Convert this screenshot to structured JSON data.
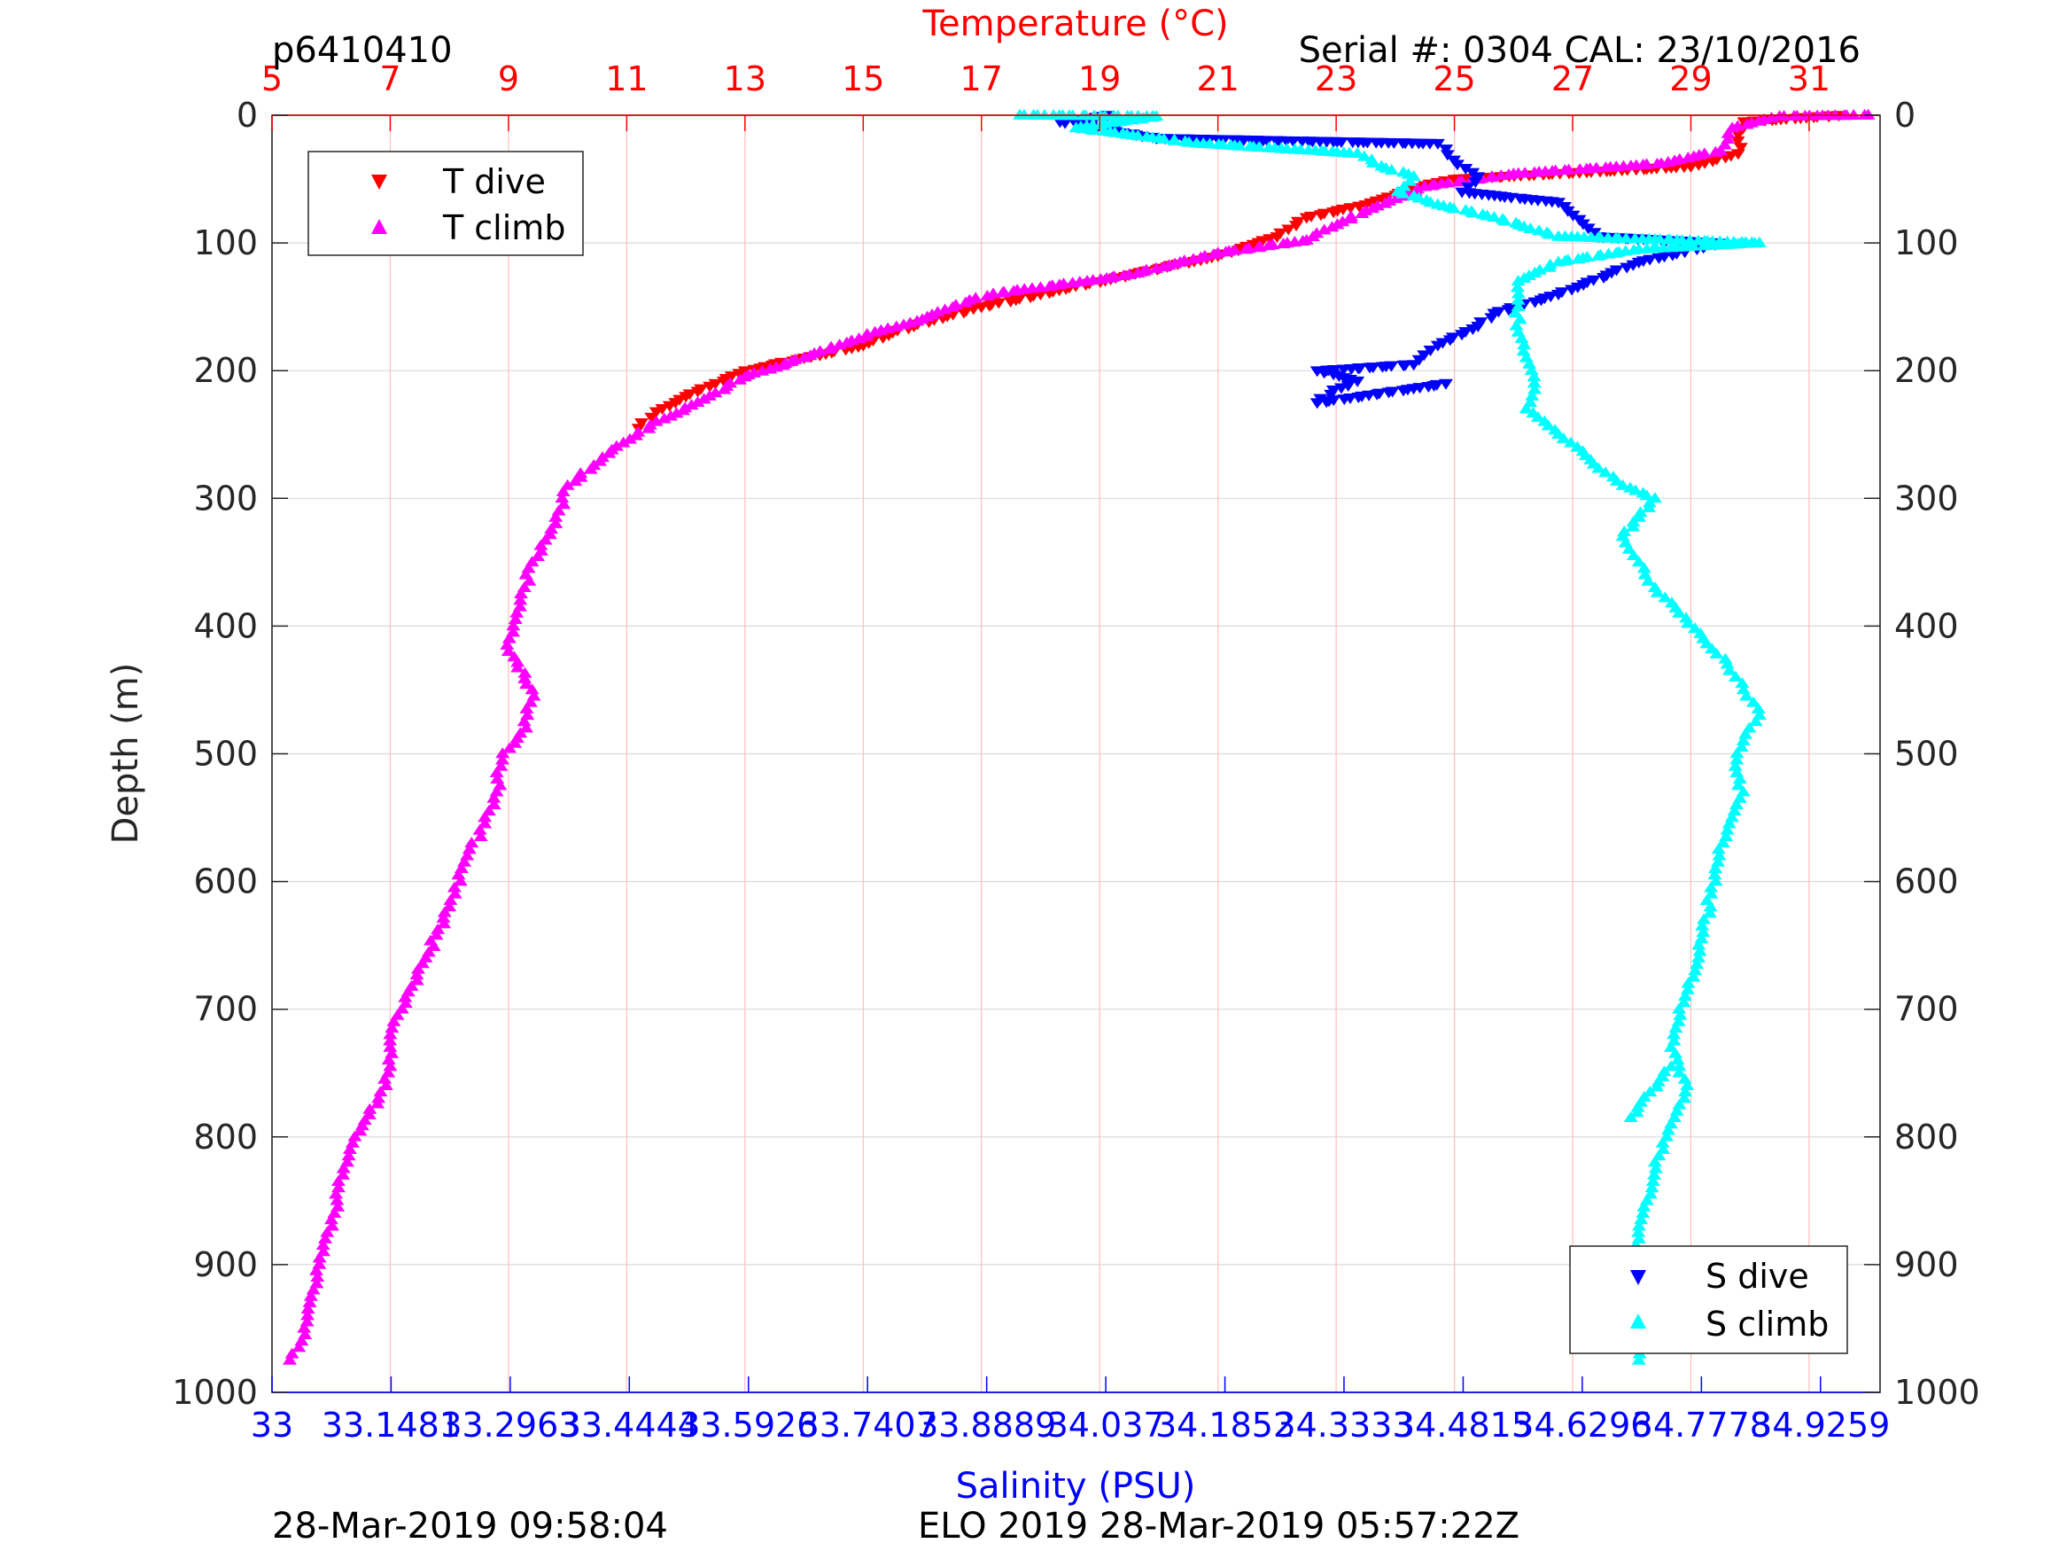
{
  "header": {
    "profile_id": "p6410410",
    "serial": "Serial #: 0304  CAL: 23/10/2016"
  },
  "footer": {
    "left": "28-Mar-2019 09:58:04",
    "center": "ELO 2019 28-Mar-2019 05:57:22Z"
  },
  "chart_data": {
    "type": "scatter",
    "title": "",
    "ylabel": "Depth (m)",
    "ylim": [
      0,
      1000
    ],
    "yreverse": true,
    "yticks": [
      "0",
      "100",
      "200",
      "300",
      "400",
      "500",
      "600",
      "700",
      "800",
      "900",
      "1000"
    ],
    "temperature_axis": {
      "label": "Temperature (°C)",
      "position": "top",
      "xlim": [
        5,
        32.2
      ],
      "ticks": [
        5,
        7,
        9,
        11,
        13,
        15,
        17,
        19,
        21,
        23,
        25,
        27,
        29,
        31
      ],
      "tick_labels": [
        "5",
        "7",
        "9",
        "11",
        "13",
        "15",
        "17",
        "19",
        "21",
        "23",
        "25",
        "27",
        "29",
        "31"
      ],
      "color": "#ff0000"
    },
    "salinity_axis": {
      "label": "Salinity (PSU)",
      "position": "bottom",
      "xlim": [
        33,
        35.0
      ],
      "ticks": [
        33,
        33.1481,
        33.2963,
        33.4444,
        33.5926,
        33.7407,
        33.8889,
        34.037,
        34.1852,
        34.3333,
        34.4815,
        34.6296,
        34.7778,
        34.9259
      ],
      "tick_labels": [
        "33",
        "33.1481",
        "33.2963",
        "33.4444",
        "33.5926",
        "33.7407",
        "33.8889",
        "34.037",
        "34.1852",
        "34.3333",
        "34.4815",
        "34.6296",
        "34.7778",
        "34.9259"
      ],
      "color": "#0000ff"
    },
    "grid": true,
    "legends": [
      {
        "placement": "top-left",
        "entries": [
          "T dive",
          "T climb"
        ]
      },
      {
        "placement": "bottom-right",
        "entries": [
          "S dive",
          "S climb"
        ]
      }
    ],
    "series": [
      {
        "name": "T dive",
        "axis": "temperature",
        "marker": "triangle-down",
        "color": "#ff0000",
        "points": [
          [
            31.5,
            0
          ],
          [
            29.9,
            5
          ],
          [
            29.8,
            15
          ],
          [
            29.8,
            30
          ],
          [
            29.0,
            40
          ],
          [
            27.0,
            45
          ],
          [
            25.0,
            50
          ],
          [
            24.5,
            55
          ],
          [
            23.5,
            70
          ],
          [
            22.5,
            80
          ],
          [
            22.0,
            95
          ],
          [
            21.0,
            110
          ],
          [
            19.5,
            125
          ],
          [
            18.0,
            140
          ],
          [
            17.0,
            150
          ],
          [
            16.2,
            160
          ],
          [
            15.5,
            170
          ],
          [
            15.0,
            180
          ],
          [
            14.0,
            190
          ],
          [
            13.0,
            200
          ],
          [
            12.5,
            210
          ],
          [
            12.0,
            220
          ],
          [
            11.5,
            232
          ],
          [
            11.2,
            245
          ]
        ]
      },
      {
        "name": "T climb",
        "axis": "temperature",
        "marker": "triangle-up",
        "color": "#ff00ff",
        "points": [
          [
            32.0,
            0
          ],
          [
            30.5,
            1
          ],
          [
            29.7,
            10
          ],
          [
            29.5,
            28
          ],
          [
            28.5,
            38
          ],
          [
            26.0,
            46
          ],
          [
            24.5,
            56
          ],
          [
            23.5,
            75
          ],
          [
            22.8,
            90
          ],
          [
            22.5,
            98
          ],
          [
            21.0,
            108
          ],
          [
            19.5,
            125
          ],
          [
            18.0,
            135
          ],
          [
            17.2,
            140
          ],
          [
            16.8,
            145
          ],
          [
            16.0,
            160
          ],
          [
            15.2,
            170
          ],
          [
            14.6,
            180
          ],
          [
            14.0,
            190
          ],
          [
            13.0,
            205
          ],
          [
            12.2,
            225
          ],
          [
            11.5,
            240
          ],
          [
            10.7,
            265
          ],
          [
            10.0,
            290
          ],
          [
            9.8,
            320
          ],
          [
            9.4,
            350
          ],
          [
            9.2,
            380
          ],
          [
            9.0,
            420
          ],
          [
            9.4,
            450
          ],
          [
            9.3,
            480
          ],
          [
            8.9,
            500
          ],
          [
            8.8,
            530
          ],
          [
            8.6,
            555
          ],
          [
            8.3,
            580
          ],
          [
            8.0,
            620
          ],
          [
            7.6,
            660
          ],
          [
            7.2,
            700
          ],
          [
            7.0,
            720
          ],
          [
            7.0,
            745
          ],
          [
            6.8,
            770
          ],
          [
            6.4,
            800
          ],
          [
            6.2,
            830
          ],
          [
            6.1,
            850
          ],
          [
            5.9,
            880
          ],
          [
            5.8,
            900
          ],
          [
            5.7,
            920
          ],
          [
            5.6,
            940
          ],
          [
            5.5,
            960
          ],
          [
            5.3,
            975
          ]
        ]
      },
      {
        "name": "S dive",
        "axis": "salinity",
        "marker": "triangle-down",
        "color": "#0000ff",
        "points": [
          [
            34.04,
            0
          ],
          [
            33.98,
            5
          ],
          [
            34.1,
            18
          ],
          [
            34.45,
            22
          ],
          [
            34.47,
            35
          ],
          [
            34.5,
            48
          ],
          [
            34.48,
            60
          ],
          [
            34.6,
            68
          ],
          [
            34.65,
            95
          ],
          [
            34.8,
            100
          ],
          [
            34.7,
            115
          ],
          [
            34.66,
            125
          ],
          [
            34.6,
            140
          ],
          [
            34.52,
            155
          ],
          [
            34.5,
            165
          ],
          [
            34.45,
            180
          ],
          [
            34.42,
            195
          ],
          [
            34.3,
            200
          ],
          [
            34.35,
            208
          ],
          [
            34.32,
            215
          ],
          [
            34.3,
            225
          ],
          [
            34.46,
            210
          ]
        ]
      },
      {
        "name": "S climb",
        "axis": "salinity",
        "marker": "triangle-up",
        "color": "#00ffff",
        "points": [
          [
            33.93,
            0
          ],
          [
            34.1,
            1
          ],
          [
            34.0,
            10
          ],
          [
            34.15,
            22
          ],
          [
            34.35,
            30
          ],
          [
            34.38,
            40
          ],
          [
            34.42,
            48
          ],
          [
            34.4,
            60
          ],
          [
            34.45,
            70
          ],
          [
            34.52,
            80
          ],
          [
            34.6,
            95
          ],
          [
            34.85,
            100
          ],
          [
            34.7,
            105
          ],
          [
            34.6,
            115
          ],
          [
            34.55,
            130
          ],
          [
            34.55,
            150
          ],
          [
            34.55,
            170
          ],
          [
            34.56,
            190
          ],
          [
            34.57,
            210
          ],
          [
            34.56,
            230
          ],
          [
            34.6,
            250
          ],
          [
            34.64,
            270
          ],
          [
            34.68,
            290
          ],
          [
            34.72,
            300
          ],
          [
            34.68,
            330
          ],
          [
            34.7,
            350
          ],
          [
            34.72,
            370
          ],
          [
            34.75,
            390
          ],
          [
            34.78,
            410
          ],
          [
            34.81,
            430
          ],
          [
            34.83,
            450
          ],
          [
            34.85,
            470
          ],
          [
            34.83,
            490
          ],
          [
            34.82,
            510
          ],
          [
            34.83,
            530
          ],
          [
            34.81,
            560
          ],
          [
            34.8,
            580
          ],
          [
            34.79,
            610
          ],
          [
            34.78,
            640
          ],
          [
            34.77,
            670
          ],
          [
            34.75,
            700
          ],
          [
            34.74,
            730
          ],
          [
            34.76,
            760
          ],
          [
            34.74,
            790
          ],
          [
            34.72,
            820
          ],
          [
            34.71,
            850
          ],
          [
            34.7,
            880
          ],
          [
            34.69,
            910
          ],
          [
            34.7,
            940
          ],
          [
            34.7,
            975
          ],
          [
            34.69,
            785
          ],
          [
            34.74,
            745
          ]
        ]
      }
    ]
  }
}
